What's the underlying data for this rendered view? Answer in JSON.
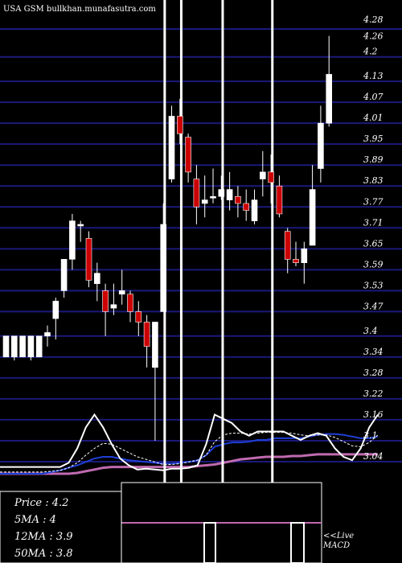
{
  "watermark": "USA GSM bullkhan.munafasutra.com",
  "stats": [
    {
      "label": "Price",
      "value": "4.2"
    },
    {
      "label": "5MA",
      "value": "4"
    },
    {
      "label": "12MA",
      "value": "3.9"
    },
    {
      "label": "50MA",
      "value": "3.8"
    }
  ],
  "macd_label": "<<Live MACD",
  "colors": {
    "background": "#000000",
    "grid": "#1a1a7a",
    "up_candle": "#ffffff",
    "down_candle": "#cc0000",
    "ma_white": "#ffffff",
    "ma_blue": "#1f3fd6",
    "ma_pink": "#c06ab0"
  },
  "chart_data": {
    "type": "candlestick",
    "title": "",
    "ylim": [
      3.04,
      4.28
    ],
    "y_ticks": [
      "4.28",
      "4.26",
      "4.2",
      "4.13",
      "4.07",
      "4.01",
      "3.95",
      "3.89",
      "3.83",
      "3.77",
      "3.71",
      "3.65",
      "3.59",
      "3.53",
      "3.47",
      "3.4",
      "3.34",
      "3.28",
      "3.22",
      "3.16",
      "3.1",
      "3.04"
    ],
    "candles": [
      {
        "o": 3.34,
        "h": 3.4,
        "l": 3.34,
        "c": 3.4
      },
      {
        "o": 3.34,
        "h": 3.4,
        "l": 3.33,
        "c": 3.4
      },
      {
        "o": 3.34,
        "h": 3.4,
        "l": 3.34,
        "c": 3.4
      },
      {
        "o": 3.34,
        "h": 3.4,
        "l": 3.33,
        "c": 3.4
      },
      {
        "o": 3.34,
        "h": 3.4,
        "l": 3.34,
        "c": 3.4
      },
      {
        "o": 3.4,
        "h": 3.43,
        "l": 3.37,
        "c": 3.41
      },
      {
        "o": 3.45,
        "h": 3.51,
        "l": 3.39,
        "c": 3.5
      },
      {
        "o": 3.53,
        "h": 3.62,
        "l": 3.51,
        "c": 3.62
      },
      {
        "o": 3.62,
        "h": 3.75,
        "l": 3.59,
        "c": 3.73
      },
      {
        "o": 3.72,
        "h": 3.73,
        "l": 3.67,
        "c": 3.72
      },
      {
        "o": 3.68,
        "h": 3.7,
        "l": 3.54,
        "c": 3.56
      },
      {
        "o": 3.55,
        "h": 3.61,
        "l": 3.5,
        "c": 3.58
      },
      {
        "o": 3.53,
        "h": 3.55,
        "l": 3.4,
        "c": 3.47
      },
      {
        "o": 3.48,
        "h": 3.55,
        "l": 3.46,
        "c": 3.49
      },
      {
        "o": 3.52,
        "h": 3.59,
        "l": 3.49,
        "c": 3.53
      },
      {
        "o": 3.52,
        "h": 3.53,
        "l": 3.44,
        "c": 3.47
      },
      {
        "o": 3.47,
        "h": 3.5,
        "l": 3.4,
        "c": 3.44
      },
      {
        "o": 3.44,
        "h": 3.46,
        "l": 3.31,
        "c": 3.37
      },
      {
        "o": 3.31,
        "h": 3.44,
        "l": 3.1,
        "c": 3.44
      },
      {
        "o": 3.47,
        "h": 3.78,
        "l": 3.47,
        "c": 3.72
      },
      {
        "o": 3.85,
        "h": 4.06,
        "l": 3.84,
        "c": 4.03
      },
      {
        "o": 4.03,
        "h": 4.08,
        "l": 3.95,
        "c": 3.98
      },
      {
        "o": 3.97,
        "h": 3.98,
        "l": 3.84,
        "c": 3.87
      },
      {
        "o": 3.85,
        "h": 3.89,
        "l": 3.72,
        "c": 3.77
      },
      {
        "o": 3.78,
        "h": 3.86,
        "l": 3.74,
        "c": 3.79
      },
      {
        "o": 3.8,
        "h": 3.88,
        "l": 3.78,
        "c": 3.8
      },
      {
        "o": 3.8,
        "h": 3.86,
        "l": 3.79,
        "c": 3.82
      },
      {
        "o": 3.79,
        "h": 3.87,
        "l": 3.76,
        "c": 3.82
      },
      {
        "o": 3.8,
        "h": 3.83,
        "l": 3.74,
        "c": 3.78
      },
      {
        "o": 3.78,
        "h": 3.82,
        "l": 3.73,
        "c": 3.76
      },
      {
        "o": 3.73,
        "h": 3.82,
        "l": 3.72,
        "c": 3.79
      },
      {
        "o": 3.85,
        "h": 3.93,
        "l": 3.8,
        "c": 3.87
      },
      {
        "o": 3.87,
        "h": 3.92,
        "l": 3.78,
        "c": 3.84
      },
      {
        "o": 3.83,
        "h": 3.86,
        "l": 3.74,
        "c": 3.75
      },
      {
        "o": 3.7,
        "h": 3.71,
        "l": 3.58,
        "c": 3.62
      },
      {
        "o": 3.62,
        "h": 3.67,
        "l": 3.6,
        "c": 3.61
      },
      {
        "o": 3.61,
        "h": 3.67,
        "l": 3.55,
        "c": 3.65
      },
      {
        "o": 3.66,
        "h": 3.89,
        "l": 3.66,
        "c": 3.82
      },
      {
        "o": 3.88,
        "h": 4.06,
        "l": 3.84,
        "c": 4.01
      },
      {
        "o": 4.01,
        "h": 4.26,
        "l": 4.0,
        "c": 4.15
      }
    ],
    "vertical_markers": [
      19.5,
      21.5,
      26.5,
      32.5
    ],
    "indicator_lines": {
      "white": [
        0.28,
        0.28,
        0.28,
        0.28,
        0.28,
        0.28,
        0.28,
        0.28,
        0.33,
        0.5,
        0.75,
        0.9,
        0.75,
        0.55,
        0.38,
        0.3,
        0.25,
        0.26,
        0.25,
        0.24,
        0.26,
        0.26,
        0.27,
        0.3,
        0.55,
        0.9,
        0.85,
        0.8,
        0.7,
        0.65,
        0.7,
        0.7,
        0.7,
        0.7,
        0.65,
        0.6,
        0.65,
        0.68,
        0.65,
        0.5,
        0.4,
        0.36,
        0.5,
        0.75,
        0.9
      ],
      "dashed": [
        0.22,
        0.22,
        0.22,
        0.22,
        0.22,
        0.22,
        0.23,
        0.24,
        0.27,
        0.33,
        0.42,
        0.5,
        0.56,
        0.55,
        0.5,
        0.45,
        0.4,
        0.37,
        0.34,
        0.31,
        0.31,
        0.32,
        0.34,
        0.36,
        0.42,
        0.58,
        0.66,
        0.68,
        0.68,
        0.67,
        0.68,
        0.69,
        0.69,
        0.69,
        0.68,
        0.66,
        0.65,
        0.66,
        0.66,
        0.63,
        0.58,
        0.53,
        0.52,
        0.57,
        0.66
      ],
      "blue": [
        0.2,
        0.2,
        0.2,
        0.2,
        0.2,
        0.2,
        0.22,
        0.24,
        0.27,
        0.3,
        0.34,
        0.38,
        0.4,
        0.4,
        0.38,
        0.36,
        0.35,
        0.34,
        0.33,
        0.32,
        0.32,
        0.33,
        0.34,
        0.36,
        0.42,
        0.52,
        0.55,
        0.57,
        0.57,
        0.58,
        0.6,
        0.6,
        0.62,
        0.62,
        0.62,
        0.62,
        0.64,
        0.66,
        0.67,
        0.67,
        0.66,
        0.64,
        0.62,
        0.62,
        0.64
      ],
      "pink": [
        0.2,
        0.2,
        0.2,
        0.2,
        0.2,
        0.2,
        0.2,
        0.2,
        0.2,
        0.21,
        0.23,
        0.25,
        0.27,
        0.28,
        0.28,
        0.28,
        0.28,
        0.28,
        0.28,
        0.28,
        0.28,
        0.28,
        0.28,
        0.29,
        0.3,
        0.31,
        0.33,
        0.35,
        0.37,
        0.38,
        0.39,
        0.4,
        0.4,
        0.4,
        0.41,
        0.41,
        0.42,
        0.43,
        0.43,
        0.43,
        0.43,
        0.43,
        0.43,
        0.43,
        0.43
      ]
    }
  }
}
